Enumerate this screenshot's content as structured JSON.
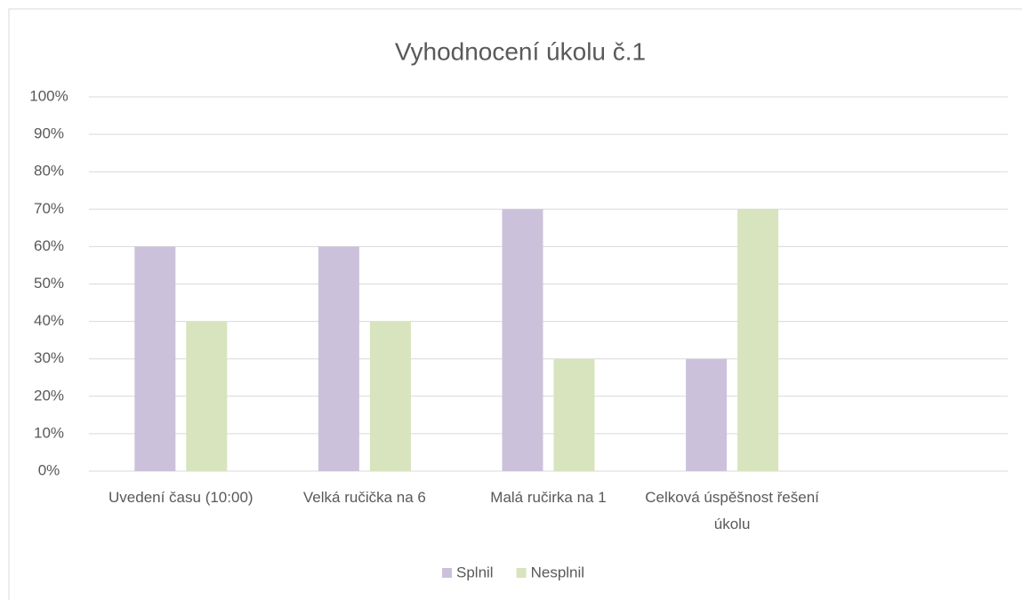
{
  "chart_data": {
    "type": "bar",
    "title": "Vyhodnocení úkolu č.1",
    "categories": [
      "Uvedení času (10:00)",
      "Velká ručička na 6",
      "Malá ručirka na 1",
      "Celková úspěšnost řešení úkolu",
      null
    ],
    "series": [
      {
        "name": "Splnil",
        "color": "#ccc1da",
        "values": [
          60,
          60,
          70,
          30,
          null
        ]
      },
      {
        "name": "Nesplnil",
        "color": "#d7e4bd",
        "values": [
          40,
          40,
          30,
          70,
          null
        ]
      }
    ],
    "ylim": [
      0,
      100
    ],
    "yticks": [
      {
        "value": 0,
        "label": "0%"
      },
      {
        "value": 10,
        "label": "10%"
      },
      {
        "value": 20,
        "label": "20%"
      },
      {
        "value": 30,
        "label": "30%"
      },
      {
        "value": 40,
        "label": "40%"
      },
      {
        "value": 50,
        "label": "50%"
      },
      {
        "value": 60,
        "label": "60%"
      },
      {
        "value": 70,
        "label": "70%"
      },
      {
        "value": 80,
        "label": "80%"
      },
      {
        "value": 90,
        "label": "90%"
      },
      {
        "value": 100,
        "label": "100%"
      }
    ],
    "grid": true,
    "legend": "bottom"
  }
}
